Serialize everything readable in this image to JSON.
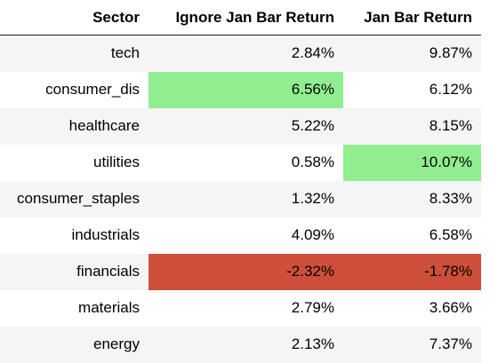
{
  "table": {
    "headers": [
      "Sector",
      "Ignore Jan Bar Return",
      "Jan Bar Return"
    ],
    "rows": [
      {
        "sector": "tech",
        "ignore_jan": "2.84%",
        "jan": "9.87%",
        "ignore_jan_highlight": "",
        "jan_highlight": ""
      },
      {
        "sector": "consumer_dis",
        "ignore_jan": "6.56%",
        "jan": "6.12%",
        "ignore_jan_highlight": "#90ee90",
        "jan_highlight": ""
      },
      {
        "sector": "healthcare",
        "ignore_jan": "5.22%",
        "jan": "8.15%",
        "ignore_jan_highlight": "",
        "jan_highlight": ""
      },
      {
        "sector": "utilities",
        "ignore_jan": "0.58%",
        "jan": "10.07%",
        "ignore_jan_highlight": "",
        "jan_highlight": "#90ee90"
      },
      {
        "sector": "consumer_staples",
        "ignore_jan": "1.32%",
        "jan": "8.33%",
        "ignore_jan_highlight": "",
        "jan_highlight": ""
      },
      {
        "sector": "industrials",
        "ignore_jan": "4.09%",
        "jan": "6.58%",
        "ignore_jan_highlight": "",
        "jan_highlight": ""
      },
      {
        "sector": "financials",
        "ignore_jan": "-2.32%",
        "jan": "-1.78%",
        "ignore_jan_highlight": "#cd4f39",
        "jan_highlight": "#cd4f39"
      },
      {
        "sector": "materials",
        "ignore_jan": "2.79%",
        "jan": "3.66%",
        "ignore_jan_highlight": "",
        "jan_highlight": ""
      },
      {
        "sector": "energy",
        "ignore_jan": "2.13%",
        "jan": "7.37%",
        "ignore_jan_highlight": "",
        "jan_highlight": ""
      }
    ]
  },
  "colors": {
    "max_highlight": "#90ee90",
    "min_highlight": "#cd4f39",
    "stripe": "#f5f5f5"
  }
}
